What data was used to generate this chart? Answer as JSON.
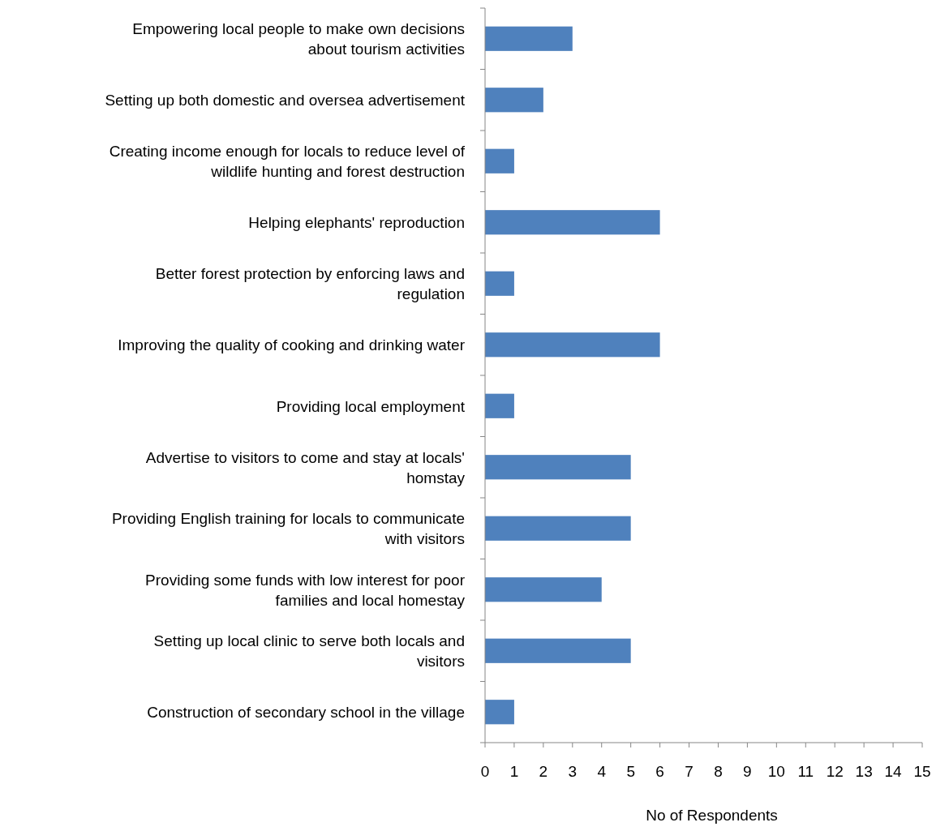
{
  "chart_data": {
    "type": "bar",
    "orientation": "horizontal",
    "xlabel": "No of Respondents",
    "categories": [
      "Empowering local people to make own decisions about tourism activities",
      "Setting up both domestic and oversea advertisement",
      "Creating income enough for locals to reduce level of wildlife hunting and forest destruction",
      "Helping elephants' reproduction",
      "Better forest protection by enforcing laws and regulation",
      "Improving the quality of cooking and drinking water",
      "Providing local employment",
      "Advertise to visitors to come and stay at locals' homstay",
      "Providing English training for locals to communicate with visitors",
      "Providing some funds with low interest for poor families and local homestay",
      "Setting up local clinic to serve both locals and visitors",
      "Construction of secondary school in the village"
    ],
    "values": [
      3,
      2,
      1,
      6,
      1,
      6,
      1,
      5,
      5,
      4,
      5,
      1
    ],
    "color": "#4f81bd",
    "xlim": [
      0,
      15
    ],
    "xticks": [
      0,
      1,
      2,
      3,
      4,
      5,
      6,
      7,
      8,
      9,
      10,
      11,
      12,
      13,
      14,
      15
    ],
    "grid": false
  }
}
